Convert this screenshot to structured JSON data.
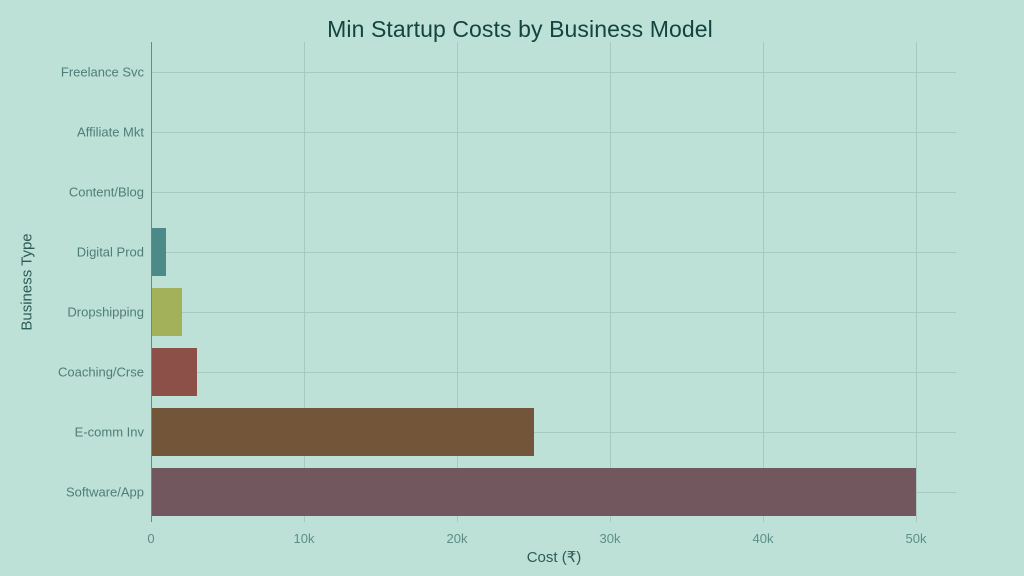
{
  "chart_data": {
    "type": "bar",
    "orientation": "horizontal",
    "title": "Min Startup Costs by Business Model",
    "xlabel": "Cost (₹)",
    "ylabel": "Business Type",
    "categories": [
      "Freelance Svc",
      "Affiliate Mkt",
      "Content/Blog",
      "Digital Prod",
      "Dropshipping",
      "Coaching/Crse",
      "E-comm Inv",
      "Software/App"
    ],
    "values": [
      0,
      0,
      0,
      1000,
      2000,
      3000,
      25000,
      50000
    ],
    "colors": [
      "#4c8a87",
      "#4c8a87",
      "#4c8a87",
      "#4c8a87",
      "#a3b25a",
      "#8c5049",
      "#73553a",
      "#72575f"
    ],
    "xlim": [
      0,
      52600
    ],
    "xticks": [
      0,
      10000,
      20000,
      30000,
      40000,
      50000
    ],
    "xtick_labels": [
      "0",
      "10k",
      "20k",
      "30k",
      "40k",
      "50k"
    ],
    "grid": true,
    "legend": null,
    "background": "#bde0d7"
  },
  "labels": {
    "title": "Min Startup Costs by Business Model",
    "xlabel": "Cost (₹)",
    "ylabel": "Business Type"
  }
}
